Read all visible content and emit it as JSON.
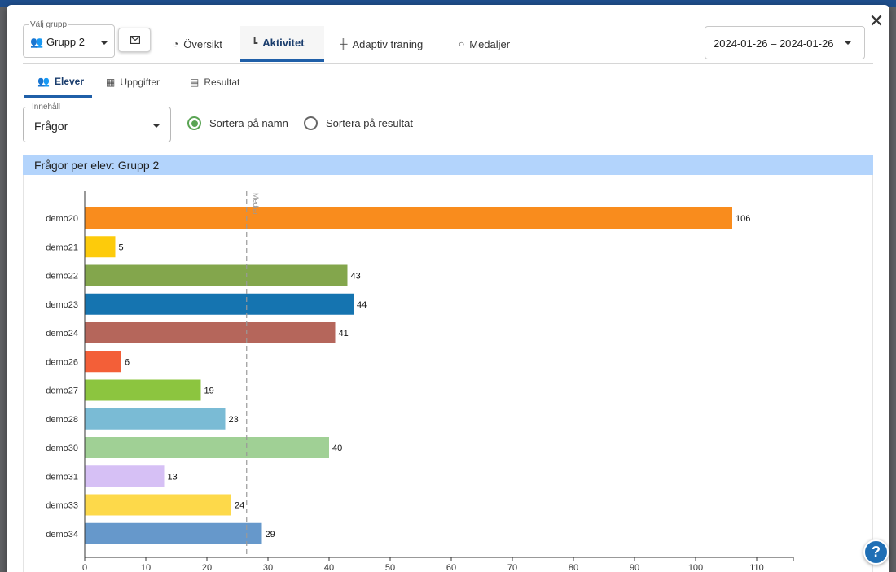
{
  "group_select": {
    "label": "Välj grupp",
    "value": "Grupp 2"
  },
  "main_tabs": [
    {
      "label": "Översikt",
      "icon": "gauge-icon"
    },
    {
      "label": "Aktivitet",
      "icon": "chart-icon"
    },
    {
      "label": "Adaptiv träning",
      "icon": "dumbbell-icon"
    },
    {
      "label": "Medaljer",
      "icon": "medal-icon"
    }
  ],
  "date_range": "2024-01-26 – 2024-01-26",
  "sub_tabs": [
    {
      "label": "Elever",
      "icon": "students-icon"
    },
    {
      "label": "Uppgifter",
      "icon": "grid-icon"
    },
    {
      "label": "Resultat",
      "icon": "list-icon"
    }
  ],
  "content_select": {
    "label": "Innehåll",
    "value": "Frågor"
  },
  "sort_options": [
    {
      "label": "Sortera på namn",
      "checked": true
    },
    {
      "label": "Sortera på resultat",
      "checked": false
    }
  ],
  "chart_title": "Frågor per elev: Grupp 2",
  "help_label": "?",
  "colors": {
    "accent": "#1f5fa8",
    "header": "#b3d4fc",
    "radio": "#5aa454"
  },
  "chart_data": {
    "type": "bar",
    "orientation": "horizontal",
    "categories": [
      "demo20",
      "demo21",
      "demo22",
      "demo23",
      "demo24",
      "demo26",
      "demo27",
      "demo28",
      "demo30",
      "demo31",
      "demo33",
      "demo34"
    ],
    "values": [
      106,
      5,
      43,
      44,
      41,
      6,
      19,
      23,
      40,
      13,
      24,
      29
    ],
    "colors": [
      "#f98c1d",
      "#fdcb0b",
      "#83a64c",
      "#1574b0",
      "#b5665b",
      "#f35f38",
      "#8cc53f",
      "#7abbd5",
      "#a0d095",
      "#d6c0f5",
      "#fdd94a",
      "#6698cb"
    ],
    "xlim": [
      0,
      116
    ],
    "xticks": [
      0,
      10,
      20,
      30,
      40,
      50,
      60,
      70,
      80,
      90,
      100,
      110
    ],
    "median": {
      "label": "Median",
      "value": 26.5
    },
    "grid": false
  }
}
